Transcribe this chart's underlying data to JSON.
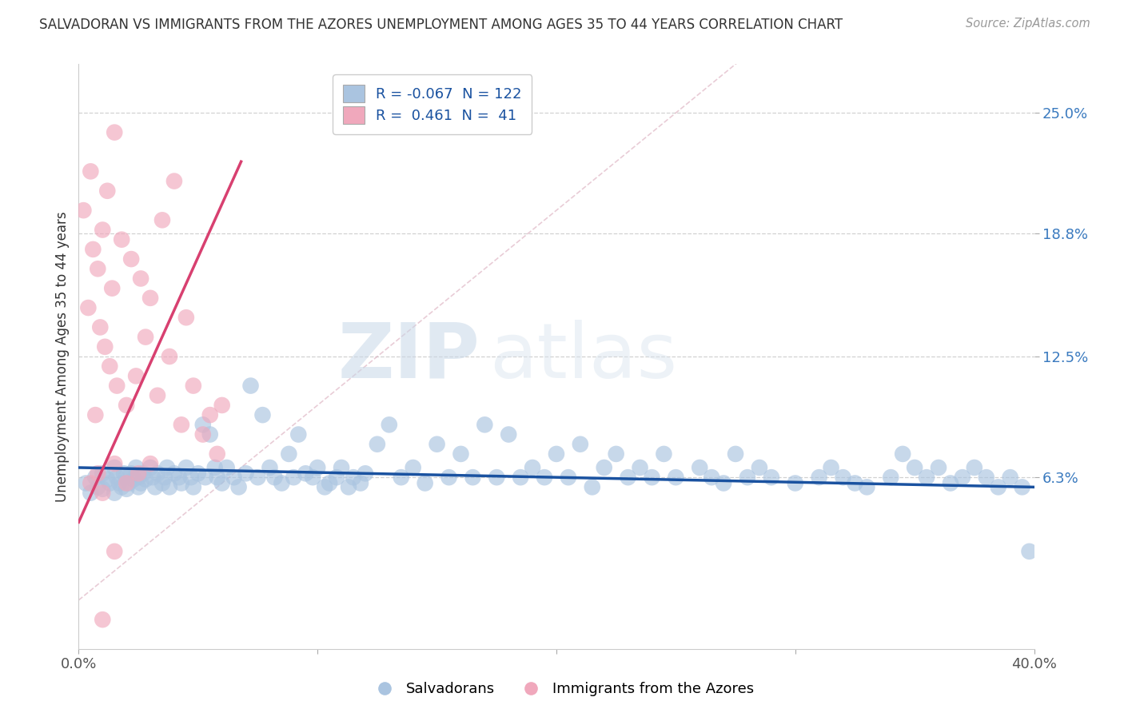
{
  "title": "SALVADORAN VS IMMIGRANTS FROM THE AZORES UNEMPLOYMENT AMONG AGES 35 TO 44 YEARS CORRELATION CHART",
  "source": "Source: ZipAtlas.com",
  "ylabel": "Unemployment Among Ages 35 to 44 years",
  "xmin": 0.0,
  "xmax": 0.4,
  "ymin": -0.025,
  "ymax": 0.275,
  "blue_R": -0.067,
  "blue_N": 122,
  "pink_R": 0.461,
  "pink_N": 41,
  "blue_color": "#aac4e0",
  "pink_color": "#f0a8bc",
  "blue_line_color": "#1a52a0",
  "pink_line_color": "#d84070",
  "diagonal_color": "#e8b8c8",
  "watermark_zip": "ZIP",
  "watermark_atlas": "atlas",
  "blue_scatter_x": [
    0.003,
    0.005,
    0.007,
    0.008,
    0.01,
    0.01,
    0.012,
    0.013,
    0.015,
    0.015,
    0.016,
    0.017,
    0.018,
    0.019,
    0.02,
    0.02,
    0.021,
    0.022,
    0.023,
    0.024,
    0.025,
    0.025,
    0.026,
    0.027,
    0.028,
    0.03,
    0.031,
    0.032,
    0.033,
    0.035,
    0.036,
    0.037,
    0.038,
    0.04,
    0.042,
    0.043,
    0.045,
    0.047,
    0.048,
    0.05,
    0.052,
    0.053,
    0.055,
    0.057,
    0.058,
    0.06,
    0.062,
    0.065,
    0.067,
    0.07,
    0.072,
    0.075,
    0.077,
    0.08,
    0.082,
    0.085,
    0.088,
    0.09,
    0.092,
    0.095,
    0.098,
    0.1,
    0.103,
    0.105,
    0.108,
    0.11,
    0.113,
    0.115,
    0.118,
    0.12,
    0.125,
    0.13,
    0.135,
    0.14,
    0.145,
    0.15,
    0.155,
    0.16,
    0.165,
    0.17,
    0.175,
    0.18,
    0.185,
    0.19,
    0.195,
    0.2,
    0.205,
    0.21,
    0.215,
    0.22,
    0.225,
    0.23,
    0.235,
    0.24,
    0.245,
    0.25,
    0.26,
    0.265,
    0.27,
    0.275,
    0.28,
    0.285,
    0.29,
    0.3,
    0.31,
    0.315,
    0.32,
    0.325,
    0.33,
    0.34,
    0.345,
    0.35,
    0.355,
    0.36,
    0.365,
    0.37,
    0.375,
    0.38,
    0.385,
    0.39,
    0.395,
    0.398
  ],
  "blue_scatter_y": [
    0.06,
    0.055,
    0.063,
    0.058,
    0.065,
    0.057,
    0.062,
    0.06,
    0.068,
    0.055,
    0.063,
    0.06,
    0.058,
    0.065,
    0.063,
    0.057,
    0.06,
    0.065,
    0.062,
    0.068,
    0.063,
    0.058,
    0.06,
    0.065,
    0.062,
    0.068,
    0.063,
    0.058,
    0.065,
    0.06,
    0.063,
    0.068,
    0.058,
    0.065,
    0.063,
    0.06,
    0.068,
    0.063,
    0.058,
    0.065,
    0.09,
    0.063,
    0.085,
    0.068,
    0.063,
    0.06,
    0.068,
    0.063,
    0.058,
    0.065,
    0.11,
    0.063,
    0.095,
    0.068,
    0.063,
    0.06,
    0.075,
    0.063,
    0.085,
    0.065,
    0.063,
    0.068,
    0.058,
    0.06,
    0.063,
    0.068,
    0.058,
    0.063,
    0.06,
    0.065,
    0.08,
    0.09,
    0.063,
    0.068,
    0.06,
    0.08,
    0.063,
    0.075,
    0.063,
    0.09,
    0.063,
    0.085,
    0.063,
    0.068,
    0.063,
    0.075,
    0.063,
    0.08,
    0.058,
    0.068,
    0.075,
    0.063,
    0.068,
    0.063,
    0.075,
    0.063,
    0.068,
    0.063,
    0.06,
    0.075,
    0.063,
    0.068,
    0.063,
    0.06,
    0.063,
    0.068,
    0.063,
    0.06,
    0.058,
    0.063,
    0.075,
    0.068,
    0.063,
    0.068,
    0.06,
    0.063,
    0.068,
    0.063,
    0.058,
    0.063,
    0.058,
    0.025
  ],
  "pink_scatter_x": [
    0.002,
    0.004,
    0.005,
    0.006,
    0.007,
    0.008,
    0.009,
    0.01,
    0.011,
    0.012,
    0.013,
    0.014,
    0.015,
    0.016,
    0.018,
    0.02,
    0.022,
    0.024,
    0.026,
    0.028,
    0.03,
    0.033,
    0.035,
    0.038,
    0.04,
    0.043,
    0.045,
    0.048,
    0.052,
    0.055,
    0.058,
    0.06,
    0.005,
    0.008,
    0.01,
    0.015,
    0.02,
    0.025,
    0.03,
    0.01,
    0.015
  ],
  "pink_scatter_y": [
    0.2,
    0.15,
    0.22,
    0.18,
    0.095,
    0.17,
    0.14,
    0.19,
    0.13,
    0.21,
    0.12,
    0.16,
    0.24,
    0.11,
    0.185,
    0.1,
    0.175,
    0.115,
    0.165,
    0.135,
    0.155,
    0.105,
    0.195,
    0.125,
    0.215,
    0.09,
    0.145,
    0.11,
    0.085,
    0.095,
    0.075,
    0.1,
    0.06,
    0.065,
    0.055,
    0.07,
    0.06,
    0.065,
    0.07,
    -0.01,
    0.025
  ]
}
